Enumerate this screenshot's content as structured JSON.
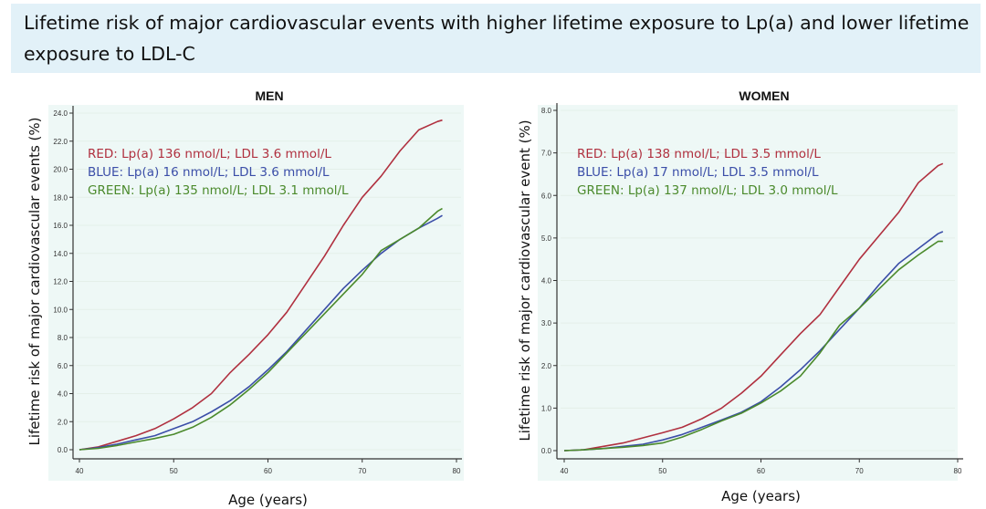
{
  "slide_title": "Lifetime risk of major cardiovascular events with higher lifetime exposure to Lp(a) and lower lifetime exposure to LDL-C",
  "colors": {
    "red": "#b0303f",
    "blue": "#3b4ea8",
    "green": "#4b8a2c",
    "title_bg": "#e2f1f8",
    "plot_bg": "#eef8f6"
  },
  "chart_data": [
    {
      "type": "line",
      "title": "MEN",
      "xlabel": "Age (years)",
      "ylabel": "Lifetime risk of major cardiovascular events (%)",
      "xlim": [
        40,
        80
      ],
      "ylim": [
        0,
        24
      ],
      "xticks": [
        "40",
        "50",
        "60",
        "70",
        "80"
      ],
      "yticks": [
        "0.0",
        "2.0",
        "4.0",
        "6.0",
        "8.0",
        "10.0",
        "12.0",
        "14.0",
        "16.0",
        "18.0",
        "20.0",
        "22.0",
        "24.0"
      ],
      "grid": true,
      "legend_placement": "top-left",
      "x": [
        40,
        42,
        44,
        46,
        48,
        50,
        52,
        54,
        56,
        58,
        60,
        62,
        64,
        66,
        68,
        70,
        72,
        74,
        76,
        78,
        78.5
      ],
      "series": [
        {
          "name": "RED: Lp(a) 136 nmol/L; LDL 3.6 mmol/L",
          "color": "red",
          "values": [
            0,
            0.2,
            0.6,
            1.0,
            1.5,
            2.2,
            3.0,
            4.0,
            5.5,
            6.8,
            8.2,
            9.8,
            11.8,
            13.8,
            16.0,
            18.0,
            19.5,
            21.3,
            22.8,
            23.4,
            23.5
          ]
        },
        {
          "name": "BLUE: Lp(a) 16 nmol/L; LDL 3.6 mmol/L",
          "color": "blue",
          "values": [
            0,
            0.15,
            0.4,
            0.7,
            1.0,
            1.5,
            2.0,
            2.7,
            3.5,
            4.5,
            5.7,
            7.0,
            8.5,
            10.0,
            11.5,
            12.8,
            14.0,
            15.0,
            15.8,
            16.5,
            16.7
          ]
        },
        {
          "name": "GREEN: Lp(a) 135 nmol/L; LDL 3.1 mmol/L",
          "color": "green",
          "values": [
            0,
            0.1,
            0.3,
            0.55,
            0.8,
            1.1,
            1.6,
            2.3,
            3.2,
            4.3,
            5.5,
            6.9,
            8.3,
            9.7,
            11.1,
            12.5,
            14.2,
            15.0,
            15.8,
            17.0,
            17.2
          ]
        }
      ]
    },
    {
      "type": "line",
      "title": "WOMEN",
      "xlabel": "Age (years)",
      "ylabel": "Lifetime risk of major cardiovascular event (%)",
      "xlim": [
        40,
        80
      ],
      "ylim": [
        0,
        8
      ],
      "xticks": [
        "40",
        "50",
        "60",
        "70",
        "80"
      ],
      "yticks": [
        "0.0",
        "1.0",
        "2.0",
        "3.0",
        "4.0",
        "5.0",
        "6.0",
        "7.0",
        "8.0"
      ],
      "grid": true,
      "legend_placement": "top-left",
      "x": [
        40,
        42,
        44,
        46,
        48,
        50,
        52,
        54,
        56,
        58,
        60,
        62,
        64,
        66,
        68,
        70,
        72,
        74,
        76,
        78,
        78.5
      ],
      "series": [
        {
          "name": "RED: Lp(a) 138 nmol/L; LDL 3.5 mmol/L",
          "color": "red",
          "values": [
            0,
            0.02,
            0.1,
            0.18,
            0.3,
            0.42,
            0.55,
            0.75,
            1.0,
            1.35,
            1.75,
            2.25,
            2.75,
            3.2,
            3.85,
            4.5,
            5.05,
            5.6,
            6.3,
            6.7,
            6.75
          ]
        },
        {
          "name": "BLUE: Lp(a) 17 nmol/L; LDL 3.5 mmol/L",
          "color": "blue",
          "values": [
            0,
            0.02,
            0.05,
            0.1,
            0.15,
            0.25,
            0.38,
            0.55,
            0.72,
            0.9,
            1.15,
            1.5,
            1.9,
            2.35,
            2.85,
            3.35,
            3.9,
            4.4,
            4.75,
            5.1,
            5.15
          ]
        },
        {
          "name": "GREEN: Lp(a) 137 nmol/L; LDL 3.0 mmol/L",
          "color": "green",
          "values": [
            0,
            0.02,
            0.05,
            0.08,
            0.12,
            0.18,
            0.32,
            0.5,
            0.7,
            0.88,
            1.12,
            1.4,
            1.75,
            2.3,
            2.95,
            3.35,
            3.8,
            4.25,
            4.6,
            4.92,
            4.92
          ]
        }
      ]
    }
  ]
}
